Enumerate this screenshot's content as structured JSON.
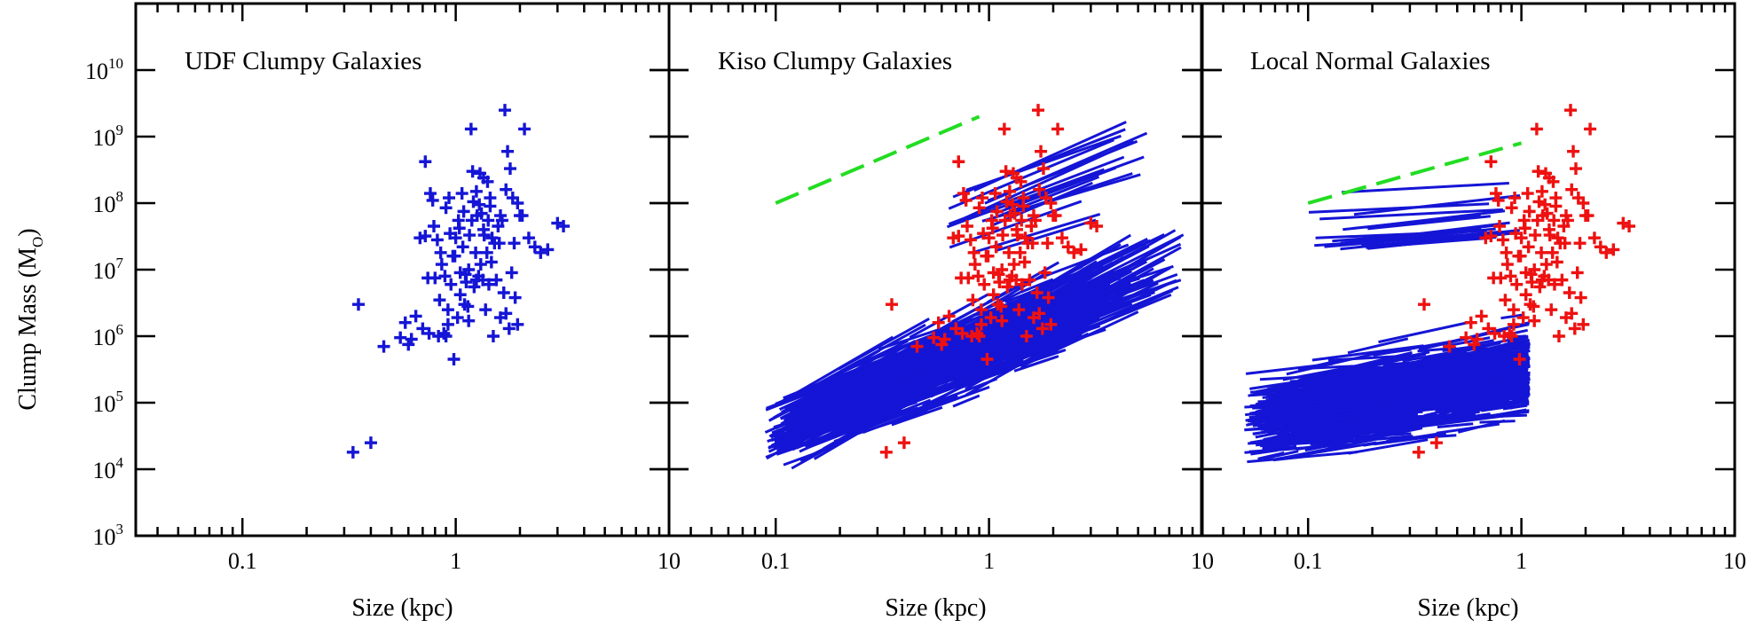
{
  "chart_data": {
    "type": "scatter",
    "ylabel": "Clump Mass (M",
    "ylabel_sub": "O",
    "ylabel_close": ")",
    "y_scale": "log",
    "x_scale": "log",
    "ylim": [
      1000,
      100000000000
    ],
    "y_tick_base": "10",
    "y_tick_exponents": [
      "3",
      "4",
      "5",
      "6",
      "7",
      "8",
      "9",
      "10"
    ],
    "colors": {
      "udf_points": "#1515d6",
      "tracks": "#1515d6",
      "overlay_points": "#ee1111",
      "reference_line": "#22dd22"
    },
    "reference_line_slope": 1.5,
    "udf_clumps": {
      "x": [
        0.33,
        0.4,
        0.35,
        0.46,
        0.55,
        0.6,
        0.65,
        0.7,
        0.72,
        0.75,
        0.78,
        0.8,
        0.83,
        0.85,
        0.88,
        0.9,
        0.92,
        0.95,
        0.98,
        1.0,
        1.02,
        1.05,
        1.08,
        1.1,
        1.12,
        1.15,
        1.18,
        1.2,
        1.22,
        1.25,
        1.28,
        1.3,
        1.32,
        1.35,
        1.38,
        1.4,
        1.42,
        1.45,
        1.48,
        1.5,
        1.55,
        1.6,
        1.65,
        1.7,
        1.75,
        1.8,
        1.85,
        1.9,
        1.95,
        2.0,
        2.1,
        2.2,
        2.35,
        2.5,
        2.7,
        3.0,
        3.2,
        0.58,
        0.62,
        0.68,
        0.72,
        0.76,
        0.82,
        0.86,
        0.9,
        0.94,
        0.97,
        1.03,
        1.07,
        1.11,
        1.16,
        1.21,
        1.26,
        1.31,
        1.36,
        1.43,
        1.52,
        1.62,
        1.72,
        1.83,
        1.95,
        0.74,
        0.79,
        0.84,
        0.89,
        0.93,
        0.99,
        1.04,
        1.09,
        1.14,
        1.19,
        1.24,
        1.29,
        1.34,
        1.41,
        1.47,
        1.58,
        1.68,
        1.78,
        1.88,
        2.05,
        1.05,
        1.15,
        1.25,
        1.35,
        1.45,
        0.92,
        1.62,
        1.72
      ],
      "y": [
        18000,
        25000,
        3000000,
        700000,
        950000,
        750000,
        2000000,
        1300000,
        32000000,
        1100000,
        110000000,
        7500000,
        1000000,
        18000000,
        1100000,
        1000000,
        2500000,
        6000000,
        450000,
        30000000,
        1900000,
        9000000,
        22000000,
        3000000,
        6500000,
        1700000,
        1300000000,
        300000000,
        5500000,
        150000000,
        8000000,
        280000000,
        70000000,
        40000000,
        2500000,
        18000000,
        55000000,
        120000000,
        30000000,
        1000000,
        7000000,
        25000000,
        55000000,
        2500000000,
        600000000,
        330000000,
        120000000,
        3800000,
        1500000,
        65000000,
        1300000000,
        30000000,
        22000000,
        18000000,
        20000000,
        50000000,
        45000000,
        1600000,
        900000,
        30000000,
        420000000,
        140000000,
        28000000,
        12000000,
        85000000,
        35000000,
        16000000,
        55000000,
        140000000,
        8500000,
        33000000,
        105000000,
        65000000,
        12000000,
        33000000,
        6000000,
        25000000,
        65000000,
        160000000,
        9000000,
        100000000,
        7500000,
        45000000,
        3500000,
        8000000,
        120000000,
        16000000,
        42000000,
        75000000,
        2800000,
        55000000,
        18000000,
        95000000,
        7000000,
        210000000,
        13000000,
        45000000,
        4500000,
        1300000,
        25000000,
        65000000,
        4200000,
        10000000,
        7000000,
        240000000,
        90000000,
        1500000,
        1900000,
        2200000
      ]
    },
    "panels": [
      {
        "title": "UDF Clumpy Galaxies",
        "xlabel": "Size (kpc)",
        "xlim": [
          0.03162,
          10
        ],
        "x_tick_labels": [
          "0.1",
          "1",
          "10"
        ],
        "layers": [
          "udf_clumps"
        ]
      },
      {
        "title": "Kiso Clumpy Galaxies",
        "xlabel": "Size (kpc)",
        "xlim": [
          0.03162,
          10
        ],
        "x_tick_labels": [
          "0.1",
          "1",
          "10"
        ],
        "layers": [
          "model_tracks",
          "udf_clumps_overlay",
          "reference_line"
        ],
        "reference_line": {
          "x": [
            0.1,
            0.9
          ],
          "y": [
            100000000,
            2000000000
          ]
        },
        "model_tracks": {
          "count": 700,
          "x_range": [
            0.09,
            6.0
          ],
          "y_range": [
            5000,
            1200000000
          ],
          "typical_slope": 1.4
        }
      },
      {
        "title": "Local Normal Galaxies",
        "xlabel": "Size (kpc)",
        "xlim": [
          0.03162,
          10
        ],
        "x_tick_labels": [
          "0.1",
          "1",
          "10"
        ],
        "layers": [
          "model_tracks",
          "udf_clumps_overlay",
          "reference_line"
        ],
        "reference_line": {
          "x": [
            0.1,
            1.0
          ],
          "y": [
            100000000,
            800000000
          ]
        },
        "model_tracks": {
          "count": 1000,
          "x_range": [
            0.05,
            1.1
          ],
          "y_range": [
            2500,
            120000000
          ],
          "typical_slope": 0.5
        }
      }
    ]
  }
}
